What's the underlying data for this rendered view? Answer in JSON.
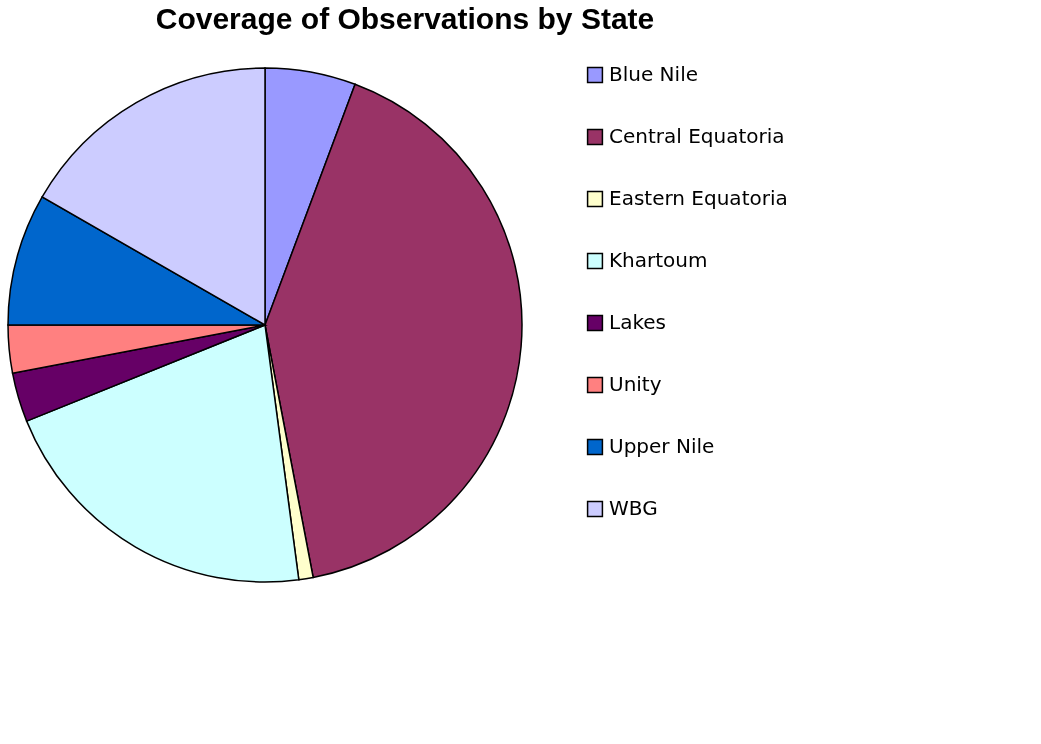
{
  "chart_data": {
    "type": "pie",
    "title": "Coverage of Observations by State",
    "categories": [
      "Blue Nile",
      "Central Equatoria",
      "Eastern Equatoria",
      "Khartoum",
      "Lakes",
      "Unity",
      "Upper Nile",
      "WBG"
    ],
    "values": [
      5.7,
      41.3,
      0.9,
      21.0,
      3.1,
      3.0,
      8.3,
      16.7
    ],
    "colors": [
      "#9999ff",
      "#993366",
      "#ffffcc",
      "#ccffff",
      "#660066",
      "#ff8080",
      "#0066cc",
      "#ccccff"
    ],
    "legend": "right"
  }
}
